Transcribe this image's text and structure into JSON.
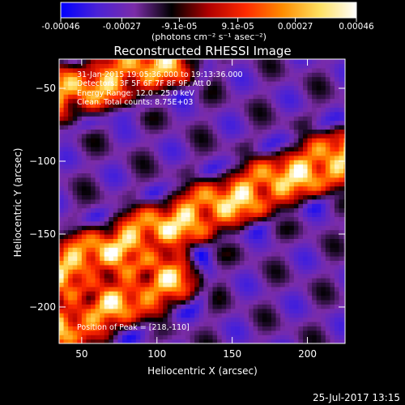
{
  "chart_data": {
    "type": "heatmap",
    "title": "Reconstructed RHESSI Image",
    "xlabel": "Heliocentric X (arcsec)",
    "ylabel": "Heliocentric Y (arcsec)",
    "xlim": [
      35,
      225
    ],
    "ylim": [
      -225,
      -30
    ],
    "xticks": [
      50,
      100,
      150,
      200
    ],
    "yticks": [
      -50,
      -100,
      -150,
      -200
    ],
    "colorbar": {
      "unit_label": "(photons cm⁻² s⁻¹ asec⁻²)",
      "range": [
        -0.00046,
        0.00046
      ],
      "tick_labels": [
        "-0.00046",
        "-0.00027",
        "-9.1e-05",
        "9.1e-05",
        "0.00027",
        "0.00046"
      ],
      "tick_values": [
        -0.00046,
        -0.00027,
        -9.1e-05,
        9.1e-05,
        0.00027,
        0.00046
      ],
      "colors": [
        "#0000ff",
        "#4b22d6",
        "#7b2ca8",
        "#000000",
        "#b00000",
        "#ff2a00",
        "#ff8c00",
        "#ffe060",
        "#ffffff"
      ]
    },
    "annotations": [
      "31-Jan-2015 19:05:36.000 to 19:13:36.000",
      "Detectors: 3F 5F 6F 7F 8F 9F, Att 0",
      "Energy Range: 12.0 - 25.0 keV",
      "Clean. Total counts: 8.75E+03",
      "Position of Peak = [218,-110]"
    ],
    "features": [
      {
        "shape": "band",
        "from": [
          35,
          -175
        ],
        "to": [
          225,
          -95
        ],
        "peak_value": 0.00046
      },
      {
        "shape": "band",
        "from": [
          35,
          -55
        ],
        "to": [
          110,
          -30
        ],
        "peak_value": 0.0004
      },
      {
        "shape": "band",
        "from": [
          35,
          -215
        ],
        "to": [
          110,
          -180
        ],
        "peak_value": 0.0004
      }
    ],
    "peak": [
      218,
      -110
    ]
  },
  "footer": {
    "date": "25-Jul-2017 13:15"
  }
}
